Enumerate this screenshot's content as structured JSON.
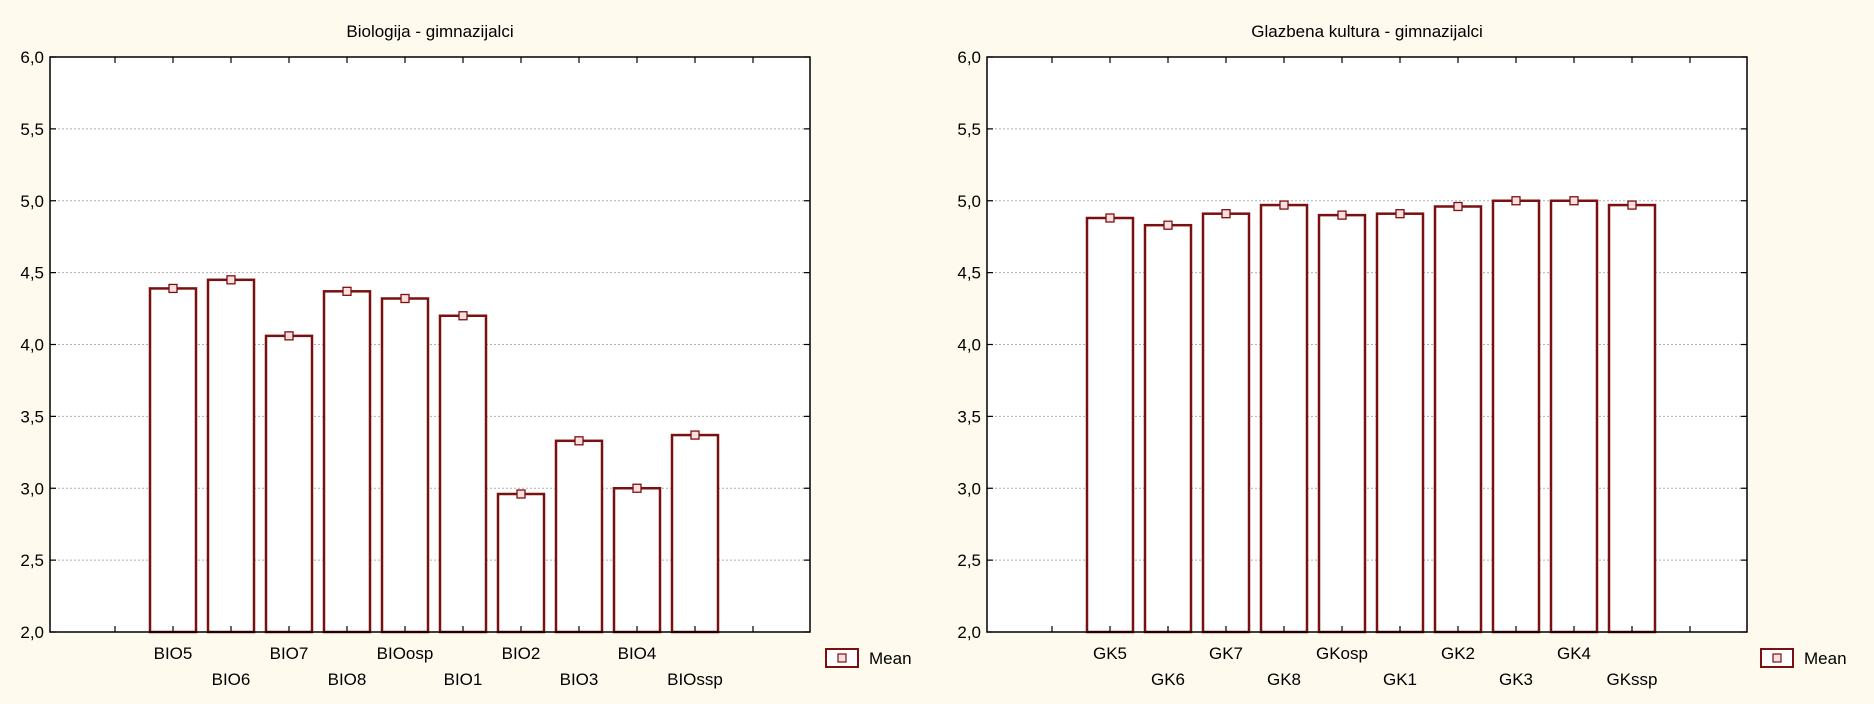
{
  "chart_data": [
    {
      "type": "bar",
      "title": "Biologija - gimnazijalci",
      "xlabel": "",
      "ylabel": "",
      "ylim": [
        2.0,
        6.0
      ],
      "yticks": [
        "2,0",
        "2,5",
        "3,0",
        "3,5",
        "4,0",
        "4,5",
        "5,0",
        "5,5",
        "6,0"
      ],
      "grid": true,
      "legend_position": "right",
      "categories": [
        "BIO5",
        "BIO6",
        "BIO7",
        "BIO8",
        "BIOosp",
        "BIO1",
        "BIO2",
        "BIO3",
        "BIO4",
        "BIOssp"
      ],
      "series": [
        {
          "name": "Mean",
          "values": [
            4.39,
            4.45,
            4.06,
            4.37,
            4.32,
            4.2,
            2.96,
            3.33,
            3.0,
            3.37
          ]
        }
      ]
    },
    {
      "type": "bar",
      "title": "Glazbena kultura - gimnazijalci",
      "xlabel": "",
      "ylabel": "",
      "ylim": [
        2.0,
        6.0
      ],
      "yticks": [
        "2,0",
        "2,5",
        "3,0",
        "3,5",
        "4,0",
        "4,5",
        "5,0",
        "5,5",
        "6,0"
      ],
      "grid": true,
      "legend_position": "right",
      "categories": [
        "GK5",
        "GK6",
        "GK7",
        "GK8",
        "GKosp",
        "GK1",
        "GK2",
        "GK3",
        "GK4",
        "GKssp"
      ],
      "series": [
        {
          "name": "Mean",
          "values": [
            4.88,
            4.83,
            4.91,
            4.97,
            4.9,
            4.91,
            4.96,
            5.0,
            5.0,
            4.97
          ]
        }
      ]
    }
  ],
  "colors": {
    "background": "#fefaee",
    "plot_background": "#ffffff",
    "bar_stroke": "#7b1010",
    "marker_fill": "#fce0e0",
    "grid": "#b0b0b0"
  }
}
